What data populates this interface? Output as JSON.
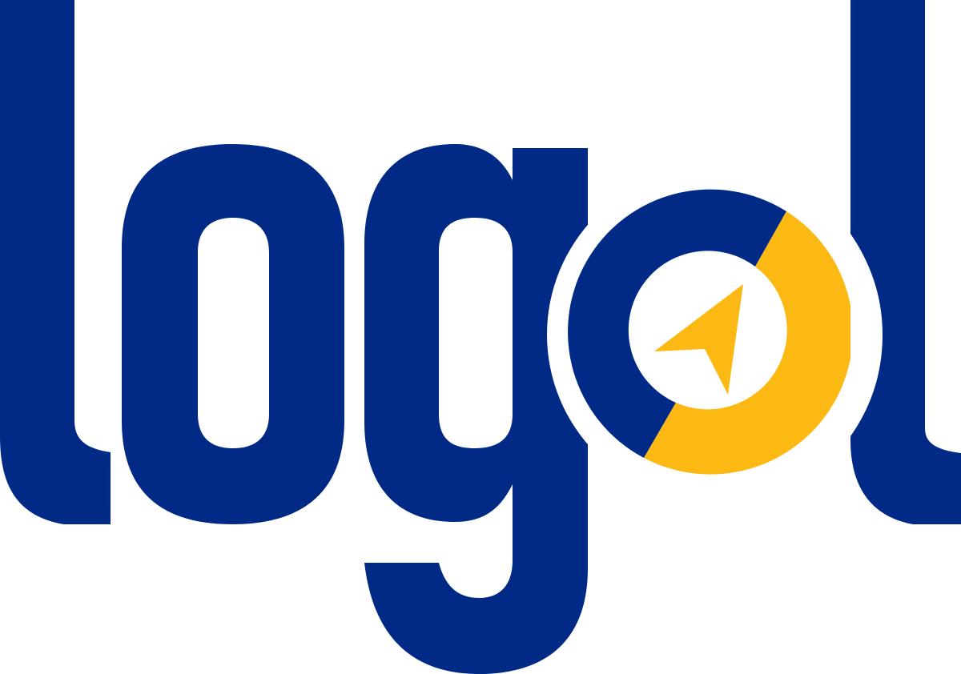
{
  "logo": {
    "wordmark": "logol",
    "colors": {
      "primary": "#002A86",
      "accent": "#FDB913",
      "background": "#FFFFFF"
    },
    "icons": {
      "compass": "compass-icon",
      "needle": "navigation-arrow-icon"
    }
  }
}
